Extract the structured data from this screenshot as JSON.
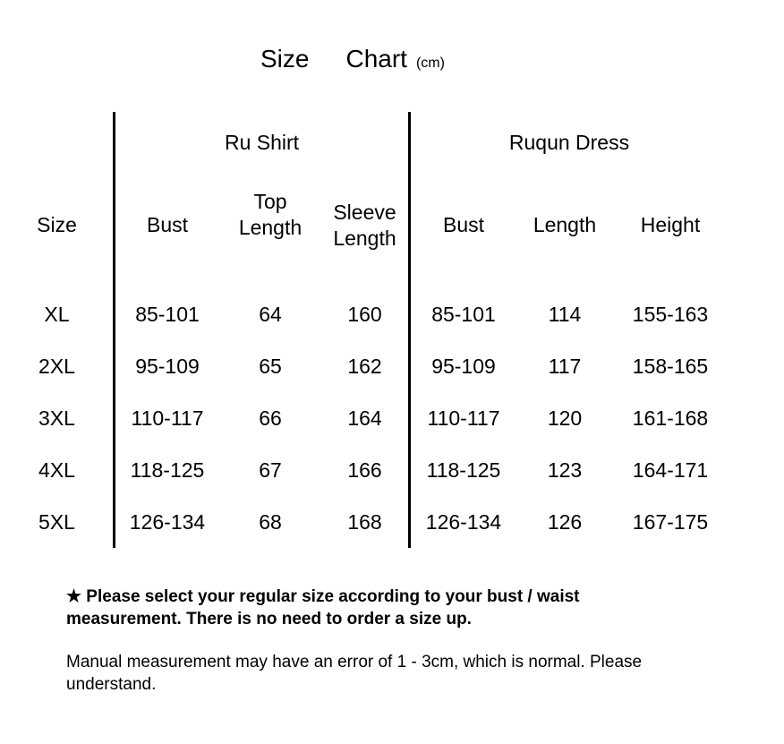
{
  "title": {
    "word1": "Size",
    "word2": "Chart",
    "unit": "(cm)"
  },
  "chart_data": {
    "type": "table",
    "title": "Size Chart (cm)",
    "column_groups": [
      {
        "label": "Ru Shirt",
        "columns": [
          "Bust",
          "Top Length",
          "Sleeve Length"
        ]
      },
      {
        "label": "Ruqun Dress",
        "columns": [
          "Bust",
          "Length",
          "Height"
        ]
      }
    ],
    "columns": [
      "Size",
      "Bust",
      "Top Length",
      "Sleeve Length",
      "Bust",
      "Length",
      "Height"
    ],
    "column_headers_display": [
      "Size",
      "Bust",
      "Top\nLength",
      "Sleeve\nLength",
      "Bust",
      "Length",
      "Height"
    ],
    "rows": [
      {
        "size": "XL",
        "values": [
          "85-101",
          "64",
          "160",
          "85-101",
          "114",
          "155-163"
        ]
      },
      {
        "size": "2XL",
        "values": [
          "95-109",
          "65",
          "162",
          "95-109",
          "117",
          "158-165"
        ]
      },
      {
        "size": "3XL",
        "values": [
          "110-117",
          "66",
          "164",
          "110-117",
          "120",
          "161-168"
        ]
      },
      {
        "size": "4XL",
        "values": [
          "118-125",
          "67",
          "166",
          "118-125",
          "123",
          "164-171"
        ]
      },
      {
        "size": "5XL",
        "values": [
          "126-134",
          "68",
          "168",
          "126-134",
          "126",
          "167-175"
        ]
      }
    ]
  },
  "notes": {
    "primary": "★ Please select your regular size according to your bust / waist\nmeasurement. There is no need to order a size up.",
    "secondary": "Manual measurement may have an error of 1 - 3cm, which is normal. Please\nunderstand."
  },
  "colors": {
    "text": "#000000",
    "background": "#ffffff",
    "divider": "#000000"
  }
}
